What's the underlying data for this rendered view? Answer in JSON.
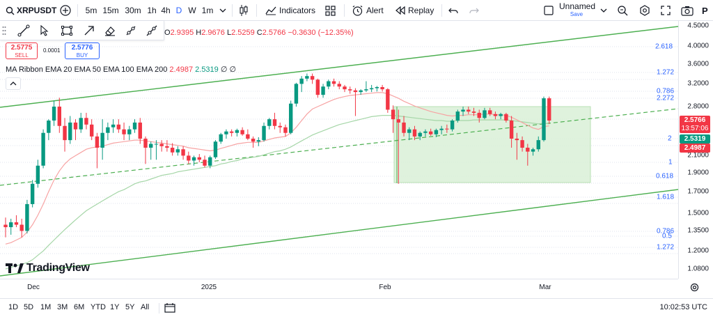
{
  "toolbar": {
    "symbol": "XRPUSDT",
    "intervals": [
      "5m",
      "15m",
      "30m",
      "1h",
      "4h",
      "D",
      "W",
      "1m"
    ],
    "active_interval": "D",
    "indicators_label": "Indicators",
    "alert_label": "Alert",
    "replay_label": "Replay",
    "layout_name": "Unnamed",
    "layout_status": "Save",
    "account_initial": "P"
  },
  "legend": {
    "open_key": "O",
    "open": "2.9395",
    "high_key": "H",
    "high": "2.9676",
    "low_key": "L",
    "low": "2.5259",
    "close_key": "C",
    "close": "2.5766",
    "change": "−0.3630 (−12.35%)",
    "sell_price": "2.5775",
    "sell_label": "SELL",
    "spread": "0.0001",
    "buy_price": "2.5776",
    "buy_label": "BUY",
    "ribbon_label": "MA Ribbon EMA 20 EMA 50 EMA 100 EMA 200",
    "ema20": "2.4987",
    "ema50": "2.5319",
    "ema100": "∅",
    "ema200": "∅"
  },
  "price_axis": {
    "labels": [
      "4.5000",
      "4.0000",
      "3.6000",
      "3.2000",
      "2.8000",
      "2.1000",
      "1.9000",
      "1.7000",
      "1.5000",
      "1.3500",
      "1.2000",
      "1.0800"
    ],
    "last_price": "2.5766",
    "countdown": "13:57:06",
    "ema50_tag": "2.5319",
    "ema20_tag": "2.4987"
  },
  "fib_levels": {
    "upper": [
      "2.618",
      "1.272",
      "0.786",
      "2.272"
    ],
    "box": [
      "2",
      "1",
      "0.618"
    ],
    "lower": [
      "1.618",
      "0.786",
      "0.5",
      "1.272"
    ]
  },
  "time_axis": [
    "Dec",
    "2025",
    "Feb",
    "Mar"
  ],
  "watermark": "TradingView",
  "ranges": [
    "1D",
    "5D",
    "1M",
    "3M",
    "6M",
    "YTD",
    "1Y",
    "5Y",
    "All"
  ],
  "clock": "10:02:53 UTC",
  "colors": {
    "up": "#089981",
    "down": "#f23645",
    "accent": "#2962ff",
    "channel": "#4caf50",
    "ema20": "#f7a3a3",
    "ema50": "#a5d6a7",
    "box_fill": "#d9f0d7"
  },
  "chart_data": {
    "type": "candlestick",
    "symbol": "XRPUSDT",
    "interval": "1D",
    "y_scale": "log",
    "ylim": [
      1.08,
      4.5
    ],
    "x": [
      "Nov 22",
      "Nov 23",
      "Nov 24",
      "Nov 25",
      "Nov 26",
      "Nov 27",
      "Nov 28",
      "Nov 29",
      "Nov 30",
      "Dec 1",
      "Dec 2",
      "Dec 3",
      "Dec 4",
      "Dec 5",
      "Dec 6",
      "Dec 7",
      "Dec 8",
      "Dec 9",
      "Dec 10",
      "Dec 11",
      "Dec 12",
      "Dec 13",
      "Dec 14",
      "Dec 15",
      "Dec 16",
      "Dec 17",
      "Dec 18",
      "Dec 19",
      "Dec 20",
      "Dec 21",
      "Dec 22",
      "Dec 23",
      "Dec 24",
      "Dec 25",
      "Dec 26",
      "Dec 27",
      "Dec 28",
      "Dec 29",
      "Dec 30",
      "Dec 31",
      "Jan 1",
      "Jan 2",
      "Jan 3",
      "Jan 4",
      "Jan 5",
      "Jan 6",
      "Jan 7",
      "Jan 8",
      "Jan 9",
      "Jan 10",
      "Jan 11",
      "Jan 12",
      "Jan 13",
      "Jan 14",
      "Jan 15",
      "Jan 16",
      "Jan 17",
      "Jan 18",
      "Jan 19",
      "Jan 20",
      "Jan 21",
      "Jan 22",
      "Jan 23",
      "Jan 24",
      "Jan 25",
      "Jan 26",
      "Jan 27",
      "Jan 28",
      "Jan 29",
      "Jan 30",
      "Jan 31",
      "Feb 1",
      "Feb 2",
      "Feb 3",
      "Feb 4",
      "Feb 5",
      "Feb 6",
      "Feb 7",
      "Feb 8",
      "Feb 9",
      "Feb 10",
      "Feb 11",
      "Feb 12",
      "Feb 13",
      "Feb 14",
      "Feb 15",
      "Feb 16",
      "Feb 17",
      "Feb 18",
      "Feb 19",
      "Feb 20",
      "Feb 21",
      "Feb 22",
      "Feb 23",
      "Feb 24",
      "Feb 25",
      "Feb 26",
      "Feb 27",
      "Feb 28",
      "Mar 1",
      "Mar 2",
      "Mar 3"
    ],
    "ohlc": [
      [
        1.4,
        1.46,
        1.3,
        1.38
      ],
      [
        1.38,
        1.45,
        1.32,
        1.42
      ],
      [
        1.42,
        1.48,
        1.38,
        1.4
      ],
      [
        1.4,
        1.45,
        1.3,
        1.35
      ],
      [
        1.35,
        1.62,
        1.33,
        1.58
      ],
      [
        1.58,
        1.82,
        1.55,
        1.78
      ],
      [
        1.78,
        2.05,
        1.74,
        1.98
      ],
      [
        1.98,
        2.45,
        1.95,
        2.4
      ],
      [
        2.4,
        2.6,
        2.3,
        2.58
      ],
      [
        2.58,
        2.9,
        2.5,
        2.8
      ],
      [
        2.8,
        2.95,
        2.4,
        2.5
      ],
      [
        2.5,
        2.62,
        2.15,
        2.3
      ],
      [
        2.3,
        2.65,
        2.25,
        2.55
      ],
      [
        2.55,
        2.6,
        2.3,
        2.45
      ],
      [
        2.45,
        2.7,
        2.4,
        2.62
      ],
      [
        2.62,
        2.7,
        2.45,
        2.52
      ],
      [
        2.52,
        2.6,
        2.3,
        2.35
      ],
      [
        2.35,
        2.4,
        1.95,
        2.2
      ],
      [
        2.2,
        2.6,
        2.05,
        2.4
      ],
      [
        2.4,
        2.55,
        2.3,
        2.48
      ],
      [
        2.48,
        2.6,
        2.4,
        2.52
      ],
      [
        2.52,
        2.6,
        2.4,
        2.45
      ],
      [
        2.45,
        2.55,
        2.3,
        2.38
      ],
      [
        2.38,
        2.5,
        2.3,
        2.45
      ],
      [
        2.45,
        2.6,
        2.4,
        2.55
      ],
      [
        2.55,
        2.62,
        2.25,
        2.32
      ],
      [
        2.32,
        2.35,
        2.0,
        2.2
      ],
      [
        2.2,
        2.28,
        2.05,
        2.25
      ],
      [
        2.25,
        2.3,
        2.05,
        2.25
      ],
      [
        2.25,
        2.3,
        2.15,
        2.22
      ],
      [
        2.22,
        2.3,
        2.15,
        2.2
      ],
      [
        2.2,
        2.26,
        2.1,
        2.14
      ],
      [
        2.14,
        2.22,
        2.1,
        2.18
      ],
      [
        2.18,
        2.22,
        2.05,
        2.1
      ],
      [
        2.1,
        2.15,
        2.0,
        2.04
      ],
      [
        2.04,
        2.1,
        1.98,
        2.08
      ],
      [
        2.08,
        2.12,
        2.02,
        2.05
      ],
      [
        2.05,
        2.1,
        1.96,
        1.98
      ],
      [
        1.98,
        2.1,
        1.95,
        2.08
      ],
      [
        2.08,
        2.3,
        2.06,
        2.28
      ],
      [
        2.28,
        2.4,
        2.25,
        2.38
      ],
      [
        2.38,
        2.45,
        2.32,
        2.42
      ],
      [
        2.42,
        2.45,
        2.35,
        2.4
      ],
      [
        2.4,
        2.46,
        2.35,
        2.44
      ],
      [
        2.44,
        2.48,
        2.36,
        2.38
      ],
      [
        2.38,
        2.45,
        2.3,
        2.32
      ],
      [
        2.32,
        2.35,
        2.2,
        2.28
      ],
      [
        2.28,
        2.34,
        2.22,
        2.3
      ],
      [
        2.3,
        2.55,
        2.28,
        2.5
      ],
      [
        2.5,
        2.62,
        2.45,
        2.6
      ],
      [
        2.6,
        2.7,
        2.45,
        2.5
      ],
      [
        2.5,
        2.55,
        2.4,
        2.48
      ],
      [
        2.48,
        2.52,
        2.35,
        2.4
      ],
      [
        2.4,
        2.9,
        2.38,
        2.85
      ],
      [
        2.85,
        3.22,
        2.8,
        3.2
      ],
      [
        3.2,
        3.35,
        3.05,
        3.3
      ],
      [
        3.3,
        3.4,
        3.25,
        3.35
      ],
      [
        3.35,
        3.4,
        3.2,
        3.28
      ],
      [
        3.28,
        3.3,
        2.95,
        3.0
      ],
      [
        3.0,
        3.2,
        2.95,
        3.15
      ],
      [
        3.15,
        3.28,
        3.1,
        3.25
      ],
      [
        3.25,
        3.3,
        3.15,
        3.2
      ],
      [
        3.2,
        3.25,
        3.1,
        3.15
      ],
      [
        3.15,
        3.18,
        3.05,
        3.1
      ],
      [
        3.1,
        3.15,
        3.02,
        3.08
      ],
      [
        3.08,
        3.12,
        2.65,
        3.05
      ],
      [
        3.05,
        3.1,
        3.0,
        3.08
      ],
      [
        3.08,
        3.25,
        3.05,
        3.1
      ],
      [
        3.1,
        3.18,
        3.05,
        3.12
      ],
      [
        3.12,
        3.16,
        3.06,
        3.14
      ],
      [
        3.14,
        3.18,
        3.06,
        3.1
      ],
      [
        3.1,
        3.12,
        2.7,
        2.75
      ],
      [
        2.75,
        2.82,
        2.4,
        2.6
      ],
      [
        2.6,
        2.75,
        1.78,
        2.55
      ],
      [
        2.55,
        2.65,
        2.35,
        2.4
      ],
      [
        2.4,
        2.48,
        2.3,
        2.45
      ],
      [
        2.45,
        2.5,
        2.3,
        2.35
      ],
      [
        2.35,
        2.42,
        2.3,
        2.4
      ],
      [
        2.4,
        2.45,
        2.35,
        2.42
      ],
      [
        2.42,
        2.46,
        2.36,
        2.38
      ],
      [
        2.38,
        2.46,
        2.34,
        2.44
      ],
      [
        2.44,
        2.5,
        2.38,
        2.46
      ],
      [
        2.46,
        2.52,
        2.4,
        2.45
      ],
      [
        2.45,
        2.6,
        2.42,
        2.58
      ],
      [
        2.58,
        2.75,
        2.55,
        2.72
      ],
      [
        2.72,
        2.8,
        2.65,
        2.75
      ],
      [
        2.75,
        2.8,
        2.68,
        2.72
      ],
      [
        2.72,
        2.78,
        2.65,
        2.7
      ],
      [
        2.7,
        2.75,
        2.55,
        2.62
      ],
      [
        2.62,
        2.78,
        2.6,
        2.74
      ],
      [
        2.74,
        2.78,
        2.65,
        2.68
      ],
      [
        2.68,
        2.72,
        2.6,
        2.65
      ],
      [
        2.65,
        2.7,
        2.6,
        2.68
      ],
      [
        2.68,
        2.7,
        2.55,
        2.58
      ],
      [
        2.58,
        2.65,
        2.2,
        2.32
      ],
      [
        2.32,
        2.4,
        2.05,
        2.3
      ],
      [
        2.3,
        2.35,
        2.15,
        2.2
      ],
      [
        2.2,
        2.25,
        1.98,
        2.15
      ],
      [
        2.15,
        2.2,
        2.1,
        2.18
      ],
      [
        2.18,
        2.35,
        2.15,
        2.3
      ],
      [
        2.3,
        2.97,
        2.28,
        2.94
      ],
      [
        2.94,
        2.97,
        2.53,
        2.58
      ]
    ],
    "ema20": [
      1.25,
      1.26,
      1.28,
      1.3,
      1.34,
      1.4,
      1.48,
      1.58,
      1.7,
      1.82,
      1.92,
      2.0,
      2.06,
      2.1,
      2.14,
      2.18,
      2.2,
      2.21,
      2.22,
      2.24,
      2.26,
      2.27,
      2.28,
      2.29,
      2.3,
      2.3,
      2.29,
      2.28,
      2.27,
      2.26,
      2.25,
      2.24,
      2.23,
      2.22,
      2.2,
      2.19,
      2.18,
      2.17,
      2.16,
      2.17,
      2.19,
      2.21,
      2.23,
      2.25,
      2.26,
      2.27,
      2.27,
      2.27,
      2.29,
      2.31,
      2.33,
      2.34,
      2.35,
      2.4,
      2.48,
      2.58,
      2.68,
      2.76,
      2.8,
      2.84,
      2.88,
      2.92,
      2.95,
      2.97,
      2.99,
      3.0,
      3.01,
      3.02,
      3.03,
      3.04,
      3.04,
      3.02,
      2.98,
      2.94,
      2.89,
      2.85,
      2.81,
      2.78,
      2.75,
      2.72,
      2.7,
      2.68,
      2.66,
      2.65,
      2.66,
      2.66,
      2.67,
      2.67,
      2.67,
      2.68,
      2.68,
      2.67,
      2.67,
      2.66,
      2.63,
      2.59,
      2.55,
      2.51,
      2.47,
      2.45,
      2.49,
      2.5
    ],
    "ema50": [
      1.08,
      1.09,
      1.1,
      1.11,
      1.12,
      1.14,
      1.17,
      1.2,
      1.24,
      1.28,
      1.32,
      1.36,
      1.4,
      1.44,
      1.48,
      1.52,
      1.55,
      1.58,
      1.61,
      1.64,
      1.67,
      1.7,
      1.72,
      1.75,
      1.78,
      1.8,
      1.81,
      1.83,
      1.85,
      1.87,
      1.88,
      1.89,
      1.91,
      1.92,
      1.93,
      1.94,
      1.95,
      1.96,
      1.97,
      1.98,
      2.0,
      2.01,
      2.03,
      2.04,
      2.06,
      2.07,
      2.08,
      2.09,
      2.11,
      2.13,
      2.15,
      2.16,
      2.18,
      2.21,
      2.25,
      2.29,
      2.33,
      2.37,
      2.4,
      2.43,
      2.46,
      2.49,
      2.52,
      2.54,
      2.56,
      2.58,
      2.6,
      2.62,
      2.64,
      2.65,
      2.66,
      2.66,
      2.66,
      2.65,
      2.64,
      2.63,
      2.62,
      2.61,
      2.6,
      2.59,
      2.58,
      2.58,
      2.57,
      2.57,
      2.58,
      2.58,
      2.58,
      2.59,
      2.59,
      2.59,
      2.59,
      2.59,
      2.59,
      2.59,
      2.58,
      2.57,
      2.56,
      2.55,
      2.54,
      2.53,
      2.54,
      2.53
    ]
  }
}
